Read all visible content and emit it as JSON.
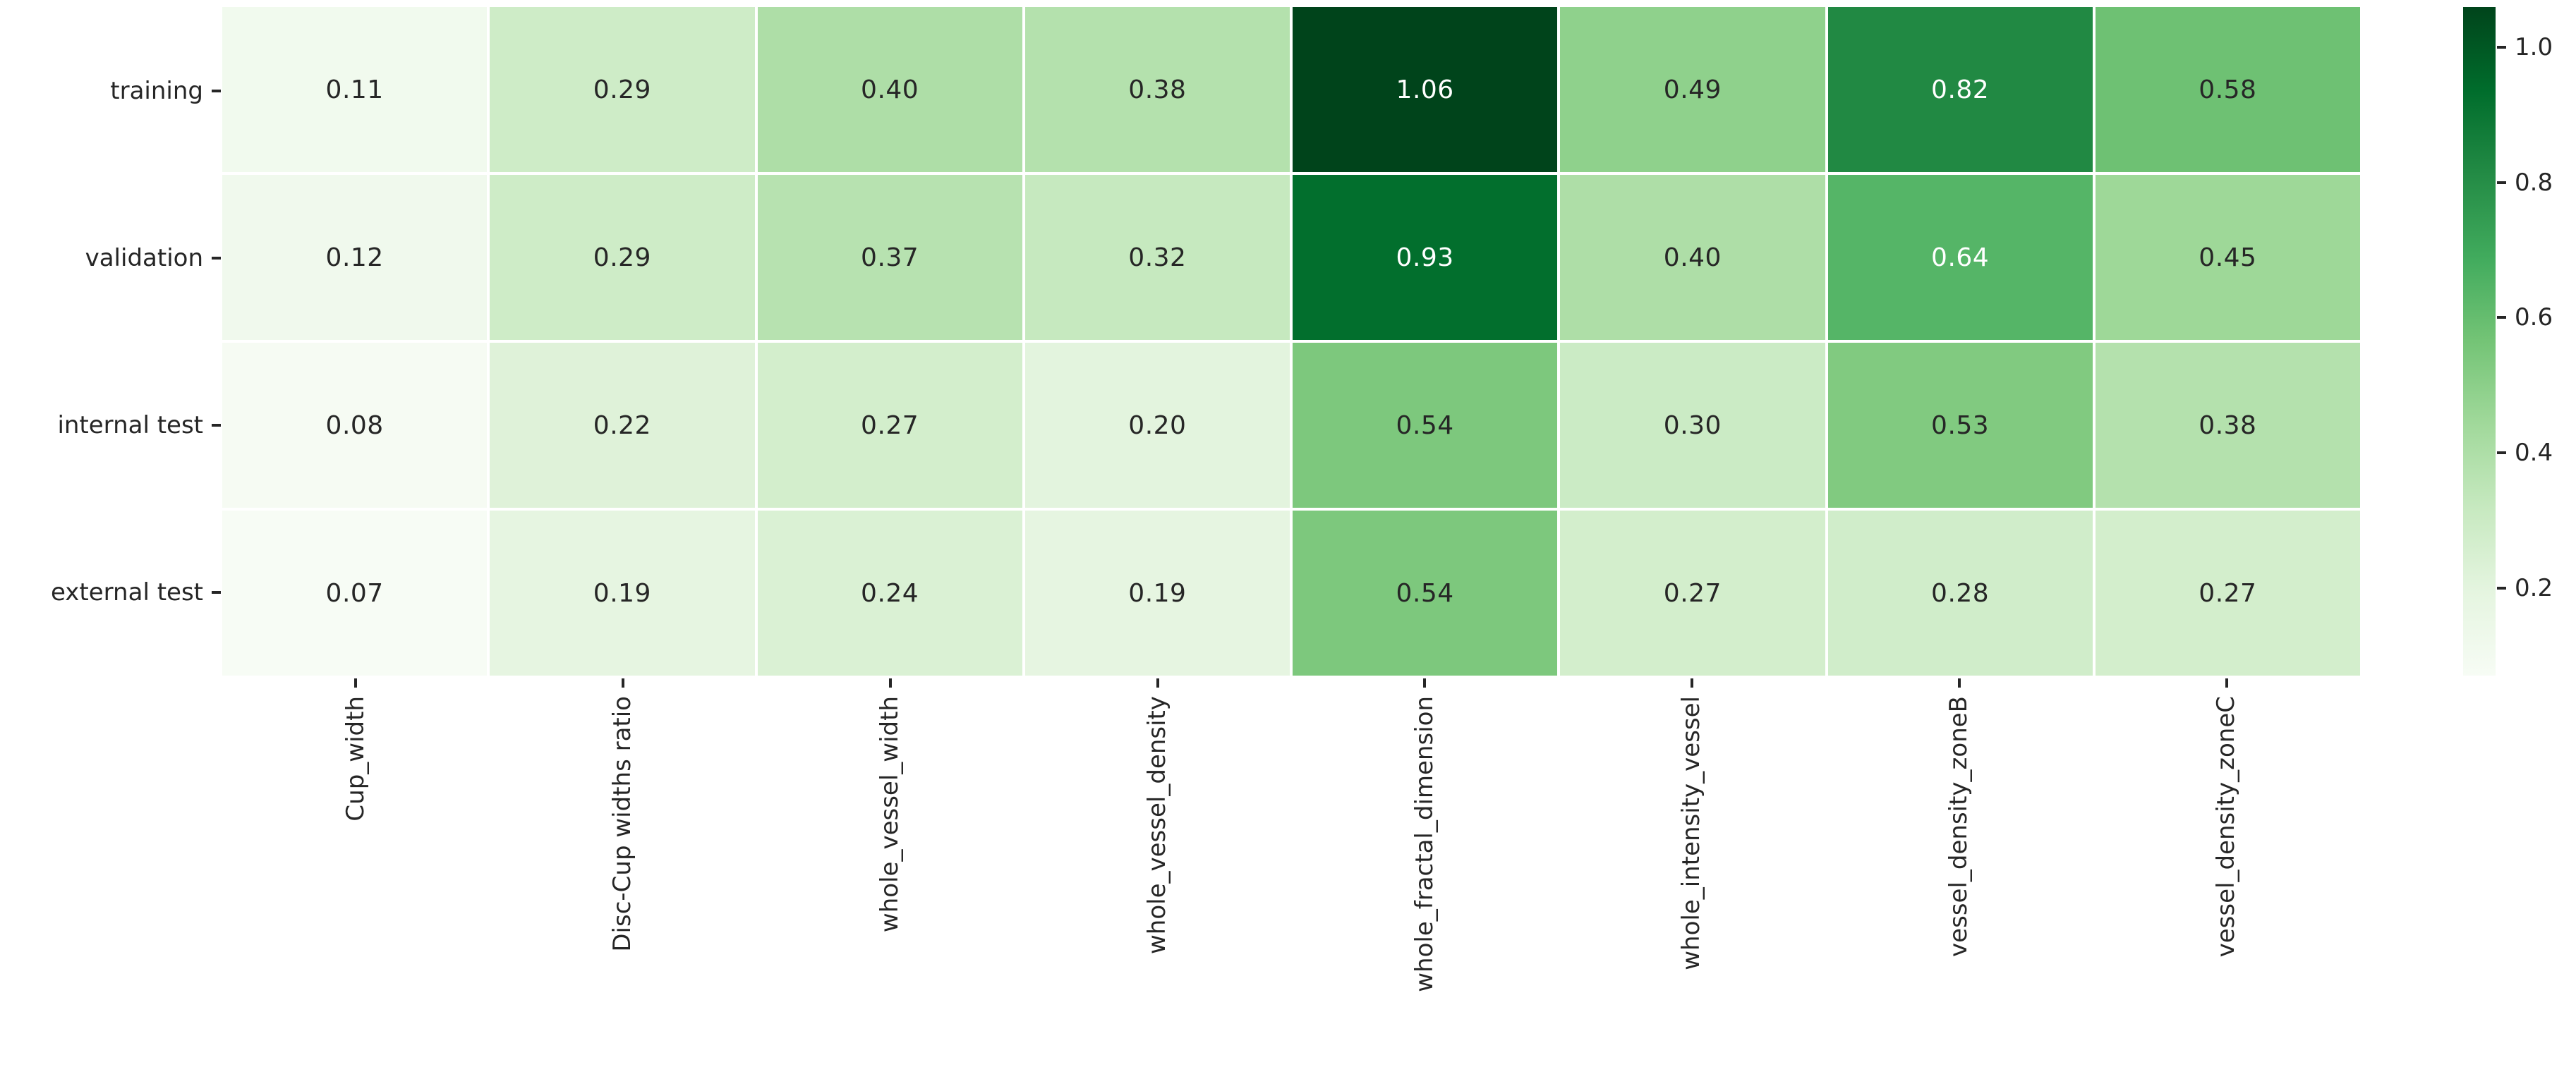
{
  "chart_data": {
    "type": "heatmap",
    "title": "",
    "rows": [
      "training",
      "validation",
      "internal test",
      "external test"
    ],
    "columns": [
      "Cup_width",
      "Disc-Cup widths ratio",
      "whole_vessel_width",
      "whole_vessel_density",
      "whole_fractal_dimension",
      "whole_intensity_vessel",
      "vessel_density_zoneB",
      "vessel_density_zoneC"
    ],
    "values": [
      [
        0.11,
        0.29,
        0.4,
        0.38,
        1.06,
        0.49,
        0.82,
        0.58
      ],
      [
        0.12,
        0.29,
        0.37,
        0.32,
        0.93,
        0.4,
        0.64,
        0.45
      ],
      [
        0.08,
        0.22,
        0.27,
        0.2,
        0.54,
        0.3,
        0.53,
        0.38
      ],
      [
        0.07,
        0.19,
        0.24,
        0.19,
        0.54,
        0.27,
        0.28,
        0.27
      ]
    ],
    "value_decimals": 2,
    "vmin": 0.07,
    "vmax": 1.06,
    "colormap": "Greens",
    "colormap_stops": [
      [
        0.0,
        "#f7fcf5"
      ],
      [
        0.125,
        "#e5f5e0"
      ],
      [
        0.25,
        "#c7e9c0"
      ],
      [
        0.375,
        "#a1d99b"
      ],
      [
        0.5,
        "#74c476"
      ],
      [
        0.625,
        "#41ab5d"
      ],
      [
        0.75,
        "#238b45"
      ],
      [
        0.875,
        "#006d2c"
      ],
      [
        1.0,
        "#00441b"
      ]
    ],
    "gridline_color": "#ffffff",
    "annot_dark_color": "#262626",
    "annot_light_color": "#ffffff",
    "tick_color": "#262626",
    "luminance_text_threshold": 0.408,
    "colorbar": {
      "position": "right",
      "ticks": [
        1.0,
        0.8,
        0.6,
        0.4,
        0.2
      ],
      "tick_decimals": 1
    },
    "xlabel": "",
    "ylabel": "",
    "grid": false,
    "legend_position": "right-colorbar"
  }
}
